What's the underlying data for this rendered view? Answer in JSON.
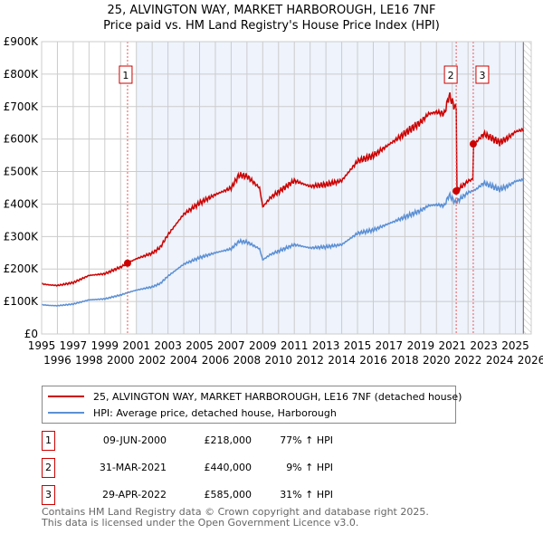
{
  "chart_data": {
    "type": "line",
    "title": "25, ALVINGTON WAY, MARKET HARBOROUGH, LE16 7NF",
    "subtitle": "Price paid vs. HM Land Registry's House Price Index (HPI)",
    "xlim": [
      1995,
      2026
    ],
    "ylim": [
      0,
      900000
    ],
    "yticks": [
      "£0",
      "£100K",
      "£200K",
      "£300K",
      "£400K",
      "£500K",
      "£600K",
      "£700K",
      "£800K",
      "£900K"
    ],
    "xticks": [
      "1995",
      "1996",
      "1997",
      "1998",
      "1999",
      "2000",
      "2001",
      "2002",
      "2003",
      "2004",
      "2005",
      "2006",
      "2007",
      "2008",
      "2009",
      "2010",
      "2011",
      "2012",
      "2013",
      "2014",
      "2015",
      "2016",
      "2017",
      "2018",
      "2019",
      "2020",
      "2021",
      "2022",
      "2023",
      "2024",
      "2025",
      "2026"
    ],
    "legend": [
      "25, ALVINGTON WAY, MARKET HARBOROUGH, LE16 7NF (detached house)",
      "HPI: Average price, detached house, Harborough"
    ],
    "colors": {
      "property": "#cc0000",
      "hpi": "#5b8fd4"
    },
    "hpi": {
      "x": [
        1995,
        1995.5,
        1996,
        1997,
        1998,
        1999,
        2000,
        2000.5,
        2001,
        2002,
        2002.5,
        2003,
        2004,
        2005,
        2006,
        2007,
        2007.5,
        2008,
        2008.8,
        2009,
        2009.5,
        2010,
        2011,
        2012,
        2013,
        2014,
        2015,
        2016,
        2016.5,
        2017,
        2018,
        2019,
        2019.5,
        2020,
        2020.5,
        2020.8,
        2021.2,
        2022,
        2022.5,
        2023,
        2023.5,
        2024,
        2024.5,
        2025,
        2025.5
      ],
      "y": [
        90000,
        88000,
        87000,
        92000,
        105000,
        108000,
        120000,
        128000,
        135000,
        145000,
        155000,
        178000,
        215000,
        235000,
        250000,
        262000,
        285000,
        283000,
        262000,
        228000,
        245000,
        255000,
        275000,
        265000,
        268000,
        275000,
        310000,
        320000,
        330000,
        340000,
        360000,
        380000,
        395000,
        398000,
        395000,
        428000,
        405000,
        435000,
        445000,
        465000,
        455000,
        445000,
        455000,
        470000,
        475000
      ]
    },
    "sales": [
      {
        "label": "1",
        "x": 2000.44,
        "date": "09-JUN-2000",
        "price": 218000,
        "price_text": "£218,000",
        "hpi_text": "77% ↑ HPI"
      },
      {
        "label": "2",
        "x": 2021.25,
        "date": "31-MAR-2021",
        "price": 440000,
        "price_text": "£440,000",
        "hpi_text": "9% ↑ HPI"
      },
      {
        "label": "3",
        "x": 2022.33,
        "date": "29-APR-2022",
        "price": 585000,
        "price_text": "£585,000",
        "hpi_text": "31% ↑ HPI"
      }
    ],
    "shaded_from": 2001,
    "projection_from": 2025.5
  },
  "footer": [
    "Contains HM Land Registry data © Crown copyright and database right 2025.",
    "This data is licensed under the Open Government Licence v3.0."
  ]
}
